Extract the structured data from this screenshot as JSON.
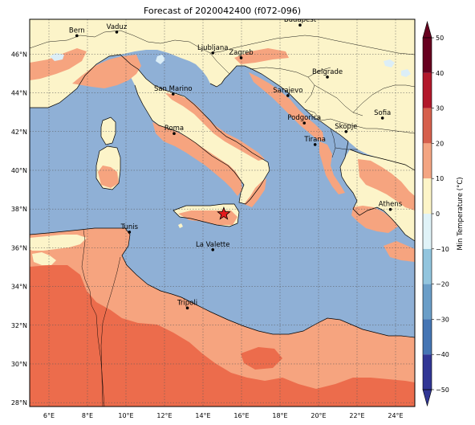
{
  "title": "Forecast of 2020042400 (f072-096)",
  "colorbar": {
    "label": "Min Temperature (°C)",
    "ticks": [
      "50",
      "40",
      "30",
      "20",
      "10",
      "0",
      "−10",
      "−20",
      "−30",
      "−40",
      "−50"
    ],
    "colors": [
      "#67001f",
      "#b2182b",
      "#d6604d",
      "#f4a582",
      "#fddbc7",
      "#fdf5c8",
      "#e0f3f8",
      "#92c5de",
      "#6a9ec8",
      "#4575b4",
      "#313695"
    ],
    "extend": "both"
  },
  "axes": {
    "lon_labels": [
      "6°E",
      "8°E",
      "10°E",
      "12°E",
      "14°E",
      "16°E",
      "18°E",
      "20°E",
      "22°E",
      "24°E"
    ],
    "lat_labels": [
      "46°N",
      "44°N",
      "42°N",
      "40°N",
      "38°N",
      "36°N",
      "34°N",
      "32°N",
      "30°N",
      "28°N"
    ],
    "lon_range": [
      5.0,
      25.0
    ],
    "lat_range": [
      27.8,
      47.8
    ],
    "grid": true
  },
  "cities": [
    {
      "name": "Bern",
      "lon": 7.45,
      "lat": 46.95
    },
    {
      "name": "Vaduz",
      "lon": 9.52,
      "lat": 47.14
    },
    {
      "name": "Budapest",
      "lon": 19.04,
      "lat": 47.5
    },
    {
      "name": "Ljubljana",
      "lon": 14.51,
      "lat": 46.06
    },
    {
      "name": "Zagreb",
      "lon": 15.98,
      "lat": 45.81
    },
    {
      "name": "Belgrade",
      "lon": 20.46,
      "lat": 44.82
    },
    {
      "name": "San Marino",
      "lon": 12.45,
      "lat": 43.94
    },
    {
      "name": "Sarajevo",
      "lon": 18.41,
      "lat": 43.86
    },
    {
      "name": "Sofia",
      "lon": 23.32,
      "lat": 42.7
    },
    {
      "name": "Podgorica",
      "lon": 19.26,
      "lat": 42.44
    },
    {
      "name": "Skopje",
      "lon": 21.43,
      "lat": 42.0
    },
    {
      "name": "Roma",
      "lon": 12.5,
      "lat": 41.9
    },
    {
      "name": "Tirana",
      "lon": 19.82,
      "lat": 41.33
    },
    {
      "name": "Athens",
      "lon": 23.73,
      "lat": 37.98
    },
    {
      "name": "Tunis",
      "lon": 10.18,
      "lat": 36.81
    },
    {
      "name": "La Valette",
      "lon": 14.51,
      "lat": 35.9
    },
    {
      "name": "Tripoli",
      "lon": 13.19,
      "lat": 32.89
    }
  ],
  "marker": {
    "type": "star",
    "lon": 15.08,
    "lat": 37.75,
    "color": "#e41a1c"
  },
  "colors": {
    "sea": "#8fb0d6",
    "land_mild": "#fcf4c9",
    "land_warm": "#f6a47f",
    "land_hot": "#ec6c4c",
    "inland_water": "#dceef7"
  }
}
